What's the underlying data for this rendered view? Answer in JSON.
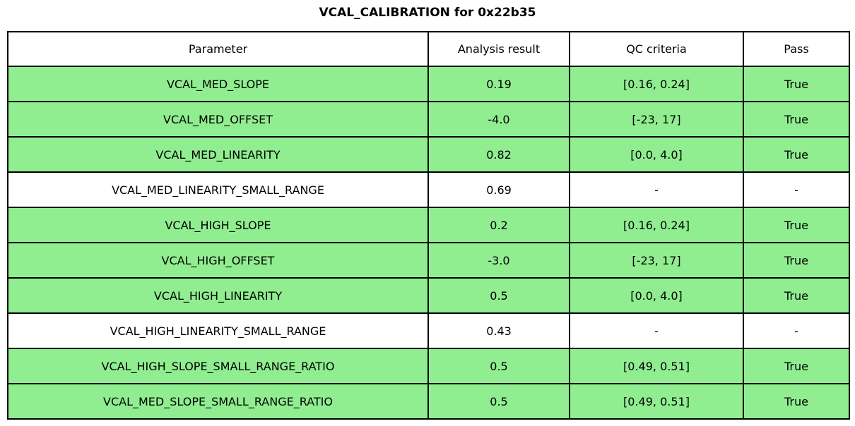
{
  "title": "VCAL_CALIBRATION for 0x22b35",
  "colors": {
    "pass_row_background": "#90EE90",
    "plain_row_background": "#ffffff",
    "border": "#000000",
    "text": "#000000"
  },
  "table": {
    "headers": [
      "Parameter",
      "Analysis result",
      "QC criteria",
      "Pass"
    ],
    "rows": [
      {
        "parameter": "VCAL_MED_SLOPE",
        "result": "0.19",
        "qc": "[0.16, 0.24]",
        "pass": "True",
        "highlight": true
      },
      {
        "parameter": "VCAL_MED_OFFSET",
        "result": "-4.0",
        "qc": "[-23, 17]",
        "pass": "True",
        "highlight": true
      },
      {
        "parameter": "VCAL_MED_LINEARITY",
        "result": "0.82",
        "qc": "[0.0, 4.0]",
        "pass": "True",
        "highlight": true
      },
      {
        "parameter": "VCAL_MED_LINEARITY_SMALL_RANGE",
        "result": "0.69",
        "qc": "-",
        "pass": "-",
        "highlight": false
      },
      {
        "parameter": "VCAL_HIGH_SLOPE",
        "result": "0.2",
        "qc": "[0.16, 0.24]",
        "pass": "True",
        "highlight": true
      },
      {
        "parameter": "VCAL_HIGH_OFFSET",
        "result": "-3.0",
        "qc": "[-23, 17]",
        "pass": "True",
        "highlight": true
      },
      {
        "parameter": "VCAL_HIGH_LINEARITY",
        "result": "0.5",
        "qc": "[0.0, 4.0]",
        "pass": "True",
        "highlight": true
      },
      {
        "parameter": "VCAL_HIGH_LINEARITY_SMALL_RANGE",
        "result": "0.43",
        "qc": "-",
        "pass": "-",
        "highlight": false
      },
      {
        "parameter": "VCAL_HIGH_SLOPE_SMALL_RANGE_RATIO",
        "result": "0.5",
        "qc": "[0.49, 0.51]",
        "pass": "True",
        "highlight": true
      },
      {
        "parameter": "VCAL_MED_SLOPE_SMALL_RANGE_RATIO",
        "result": "0.5",
        "qc": "[0.49, 0.51]",
        "pass": "True",
        "highlight": true
      }
    ]
  },
  "chart_data": {
    "type": "table",
    "title": "VCAL_CALIBRATION for 0x22b35",
    "columns": [
      "Parameter",
      "Analysis result",
      "QC criteria",
      "Pass"
    ],
    "rows": [
      [
        "VCAL_MED_SLOPE",
        "0.19",
        "[0.16, 0.24]",
        "True"
      ],
      [
        "VCAL_MED_OFFSET",
        "-4.0",
        "[-23, 17]",
        "True"
      ],
      [
        "VCAL_MED_LINEARITY",
        "0.82",
        "[0.0, 4.0]",
        "True"
      ],
      [
        "VCAL_MED_LINEARITY_SMALL_RANGE",
        "0.69",
        "-",
        "-"
      ],
      [
        "VCAL_HIGH_SLOPE",
        "0.2",
        "[0.16, 0.24]",
        "True"
      ],
      [
        "VCAL_HIGH_OFFSET",
        "-3.0",
        "[-23, 17]",
        "True"
      ],
      [
        "VCAL_HIGH_LINEARITY",
        "0.5",
        "[0.0, 4.0]",
        "True"
      ],
      [
        "VCAL_HIGH_LINEARITY_SMALL_RANGE",
        "0.43",
        "-",
        "-"
      ],
      [
        "VCAL_HIGH_SLOPE_SMALL_RANGE_RATIO",
        "0.5",
        "[0.49, 0.51]",
        "True"
      ],
      [
        "VCAL_MED_SLOPE_SMALL_RANGE_RATIO",
        "0.5",
        "[0.49, 0.51]",
        "True"
      ]
    ],
    "row_highlighted_green": [
      true,
      true,
      true,
      false,
      true,
      true,
      true,
      false,
      true,
      true
    ],
    "layout": {
      "header_row_background": "#ffffff",
      "pass_row_background": "#90EE90",
      "grid": true
    }
  }
}
